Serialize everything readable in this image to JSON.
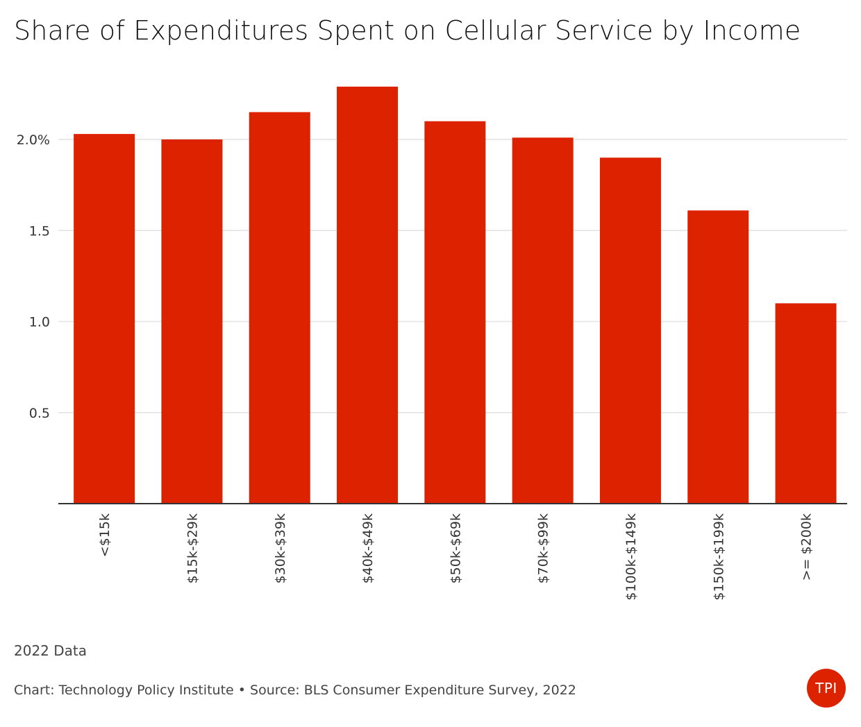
{
  "title": "Share of Expenditures Spent on Cellular Service by Income",
  "note": "2022 Data",
  "footer": "Chart: Technology Policy Institute • Source: BLS Consumer Expenditure Survey, 2022",
  "logo_text": "TPI",
  "colors": {
    "bar": "#dd2200",
    "grid": "#e2e2e2",
    "axis": "#333333",
    "logo": "#dd2200"
  },
  "chart_data": {
    "type": "bar",
    "categories": [
      "<$15k",
      "$15k-$29k",
      "$30k-$39k",
      "$40k-$49k",
      "$50k-$69k",
      "$70k-$99k",
      "$100k-$149k",
      "$150k-$199k",
      ">= $200k"
    ],
    "values": [
      2.03,
      2.0,
      2.15,
      2.29,
      2.1,
      2.01,
      1.9,
      1.61,
      1.1
    ],
    "title": "Share of Expenditures Spent on Cellular Service by Income",
    "xlabel": "",
    "ylabel": "",
    "ylim": [
      0,
      2.3
    ],
    "yticks": [
      0.5,
      1.0,
      1.5,
      2.0
    ],
    "ytick_labels": [
      "0.5",
      "1.0",
      "1.5",
      "2.0%"
    ],
    "grid": true,
    "legend": "none"
  }
}
